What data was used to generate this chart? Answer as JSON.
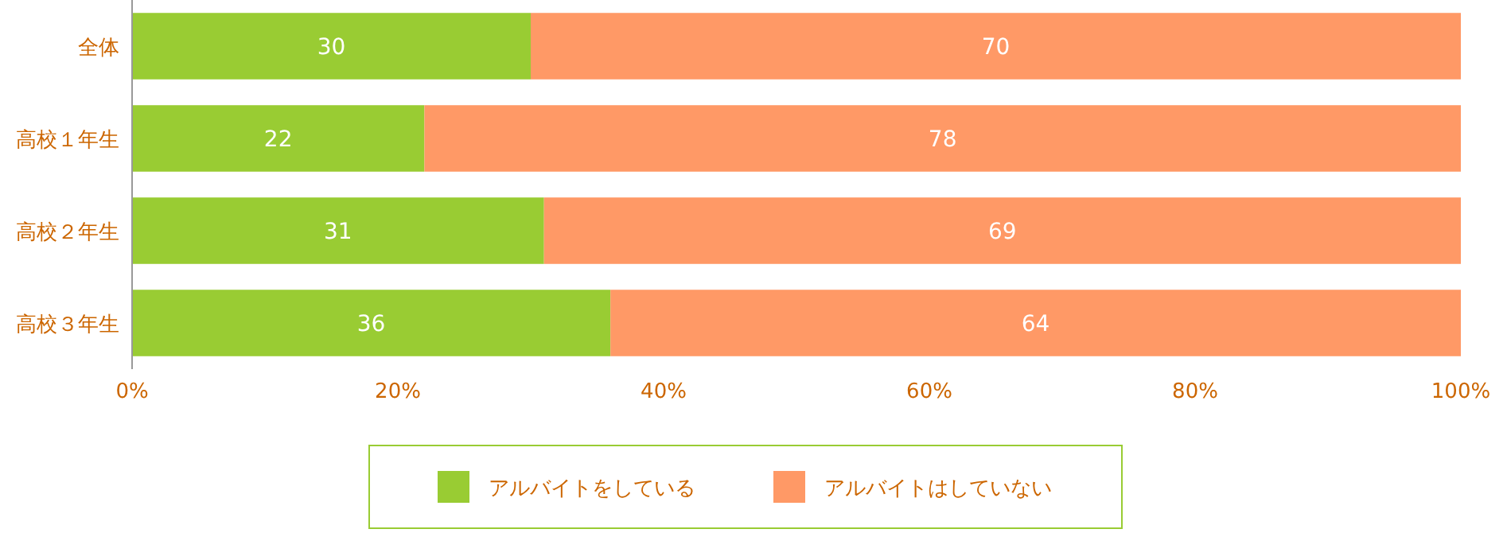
{
  "chart_data": {
    "type": "bar",
    "orientation": "horizontal",
    "stacked": true,
    "categories": [
      "全体",
      "高校１年生",
      "高校２年生",
      "高校３年生"
    ],
    "series": [
      {
        "name": "アルバイトをしている",
        "color": "#99cc33",
        "values": [
          30,
          22,
          31,
          36
        ]
      },
      {
        "name": "アルバイトはしていない",
        "color": "#ff9966",
        "values": [
          70,
          78,
          69,
          64
        ]
      }
    ],
    "xlim": [
      0,
      100
    ],
    "xticks": [
      {
        "value": 0,
        "label": "0%"
      },
      {
        "value": 20,
        "label": "20%"
      },
      {
        "value": 40,
        "label": "40%"
      },
      {
        "value": 60,
        "label": "60%"
      },
      {
        "value": 80,
        "label": "80%"
      },
      {
        "value": 100,
        "label": "100%"
      }
    ],
    "data_labels": true,
    "legend": "bottom",
    "grid": false
  }
}
